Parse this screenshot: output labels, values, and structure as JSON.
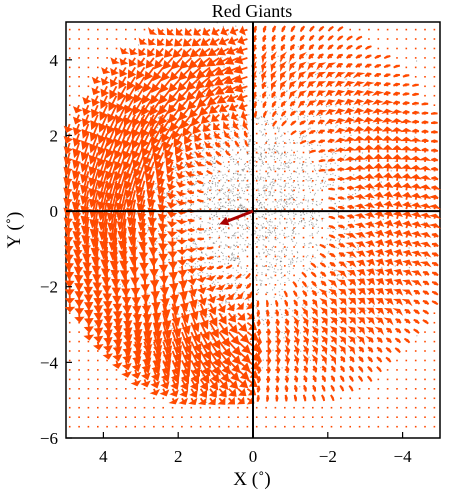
{
  "chart_data": {
    "type": "scatter",
    "title": "Red Giants",
    "xlabel": "X (˚)",
    "ylabel": "Y (˚)",
    "xlim": [
      5,
      -5
    ],
    "ylim": [
      -6,
      5
    ],
    "x_ticks": [
      4,
      2,
      0,
      -2,
      -4
    ],
    "x_tick_labels": [
      "4",
      "2",
      "0",
      "−2",
      "−4"
    ],
    "y_ticks": [
      -6,
      -4,
      -2,
      0,
      2,
      4
    ],
    "y_tick_labels": [
      "−6",
      "−4",
      "−2",
      "0",
      "2",
      "4"
    ],
    "grid": false,
    "reference_lines": [
      {
        "axis": "x",
        "value": 0
      },
      {
        "axis": "y",
        "value": 0
      }
    ],
    "background_density": {
      "center": [
        0.1,
        0.3
      ],
      "spread": [
        1.6,
        1.6
      ],
      "color": "#000000"
    },
    "vector_field": {
      "color": "#ff4a00",
      "grid_x": [
        4.9,
        -4.9
      ],
      "grid_y": [
        4.8,
        -5.8
      ],
      "step": 0.25,
      "description_data": "vector arrows showing residual motions, in degrees units"
    },
    "central_vector": {
      "from": [
        0,
        0
      ],
      "to": [
        0.9,
        -0.35
      ],
      "color": "#a80000"
    }
  }
}
